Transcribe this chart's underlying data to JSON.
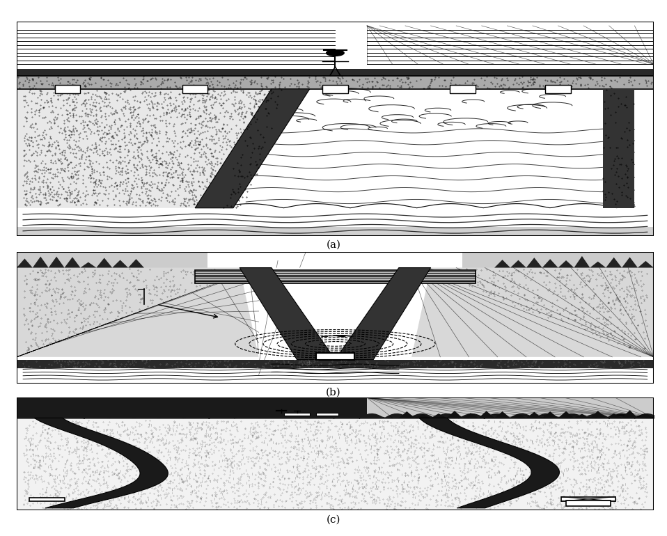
{
  "background_color": "#ffffff",
  "label_a": "(a)",
  "label_b": "(b)",
  "label_c": "(c)",
  "label_fontsize": 11,
  "fig_width": 9.58,
  "fig_height": 7.7
}
